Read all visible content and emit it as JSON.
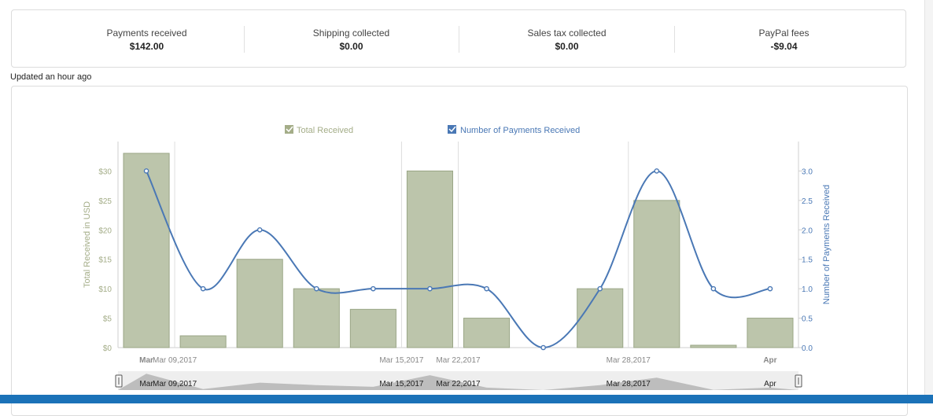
{
  "summary": [
    {
      "label": "Payments received",
      "value": "$142.00"
    },
    {
      "label": "Shipping collected",
      "value": "$0.00"
    },
    {
      "label": "Sales tax collected",
      "value": "$0.00"
    },
    {
      "label": "PayPal fees",
      "value": "-$9.04"
    }
  ],
  "updated_text": "Updated an hour ago",
  "colors": {
    "bar": "#bcc5ab",
    "bar_border": "#9aa686",
    "line": "#4a78b5",
    "axis_left": "#a4ad88",
    "axis_right": "#4a78b5",
    "bottom_bar": "#1b72b8"
  },
  "chart_data": {
    "type": "bar",
    "legend": [
      {
        "name": "Total Received",
        "checked": true
      },
      {
        "name": "Number of Payments Received",
        "checked": true
      }
    ],
    "ylabel_left": "Total Received in USD",
    "ylabel_right": "Number of Payments Received",
    "yticks_left": [
      "$0",
      "$5",
      "$10",
      "$15",
      "$20",
      "$25",
      "$30"
    ],
    "yticks_right": [
      "0.0",
      "0.5",
      "1.0",
      "1.5",
      "2.0",
      "2.5",
      "3.0"
    ],
    "ylim_left": [
      0,
      35
    ],
    "ylim_right": [
      0,
      3.5
    ],
    "xticks": [
      {
        "label": "Mar",
        "bold": true,
        "index": 0
      },
      {
        "label": "Mar 09,2017",
        "bold": false,
        "index": 1
      },
      {
        "label": "Mar 15,2017",
        "bold": false,
        "index": 5
      },
      {
        "label": "Mar 22,2017",
        "bold": false,
        "index": 6
      },
      {
        "label": "Mar 28,2017",
        "bold": false,
        "index": 9
      },
      {
        "label": "Apr",
        "bold": true,
        "index": 11
      }
    ],
    "series": [
      {
        "name": "Total Received",
        "type": "bar",
        "values": [
          33,
          2,
          15,
          10,
          6.5,
          30,
          5,
          0,
          10,
          25,
          0.4,
          5
        ]
      },
      {
        "name": "Number of Payments Received",
        "type": "line",
        "values": [
          3,
          1,
          2,
          1,
          1,
          1,
          1,
          0,
          1,
          3,
          1,
          1
        ]
      }
    ],
    "navigator_labels": [
      {
        "label": "Mar",
        "index": 0
      },
      {
        "label": "Mar 09,2017",
        "index": 1
      },
      {
        "label": "Mar 15,2017",
        "index": 5
      },
      {
        "label": "Mar 22,2017",
        "index": 6
      },
      {
        "label": "Mar 28,2017",
        "index": 9
      },
      {
        "label": "Apr",
        "index": 11
      }
    ]
  }
}
